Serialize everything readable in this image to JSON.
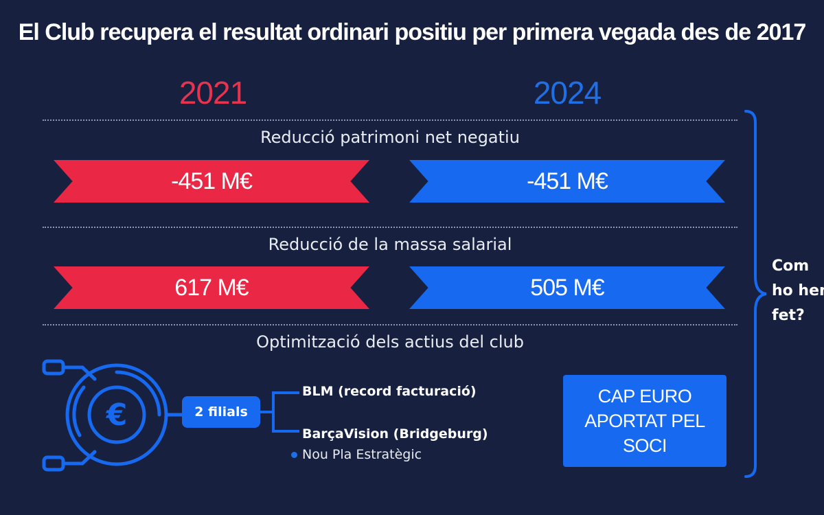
{
  "title": "El Club recupera el resultat ordinari positiu per primera vegada des de 2017",
  "years": {
    "left": "2021",
    "right": "2024"
  },
  "sections": [
    {
      "label": "Reducció patrimoni net negatiu",
      "value_2021": "-451 M€",
      "value_2024": "-451 M€"
    },
    {
      "label": "Reducció de la massa salarial",
      "value_2021": "617 M€",
      "value_2024": "505 M€"
    },
    {
      "label": "Optimització dels actius del club"
    }
  ],
  "assets": {
    "icon": "euro-circuit-icon",
    "filials_label": "2 filials",
    "subsidiaries": [
      "BLM (record facturació)",
      "BarçaVision (Bridgeburg)"
    ],
    "plan": "Nou Pla Estratègic",
    "cap_box": {
      "line1": "CAP EURO",
      "line2": "APORTAT PEL SOCI"
    }
  },
  "how": {
    "line1": "Com",
    "line2": "ho hem",
    "line3": "fet?"
  },
  "colors": {
    "background": "#17213f",
    "red": "#ea2846",
    "blue": "#1769f0",
    "year_red": "#e8334e",
    "year_blue": "#1f6fe6"
  }
}
